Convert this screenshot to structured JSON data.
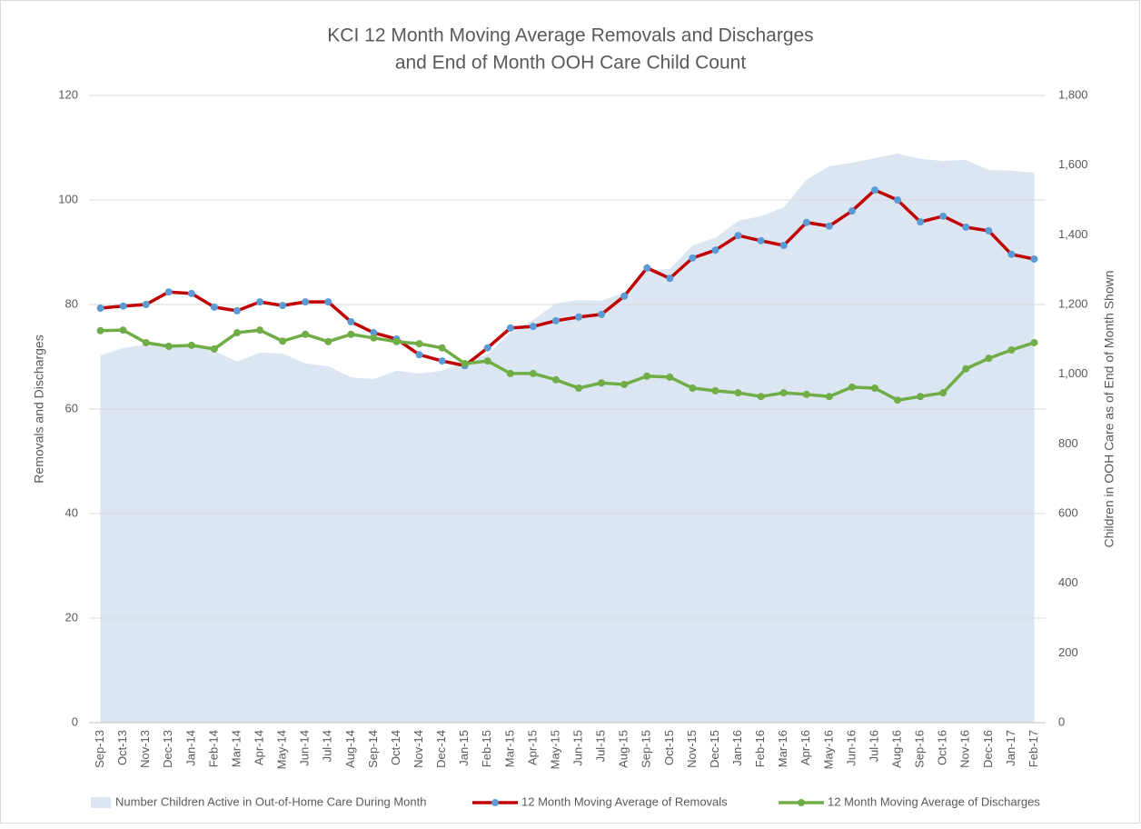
{
  "chart_data": {
    "type": "line",
    "title": [
      "KCI 12 Month Moving Average Removals and Discharges",
      "and End of Month OOH Care Child Count"
    ],
    "y_label": "Removals and Discharges",
    "y2_label": "Children in OOH Care as of End of Month Shown",
    "categories": [
      "Sep-13",
      "Oct-13",
      "Nov-13",
      "Dec-13",
      "Jan-14",
      "Feb-14",
      "Mar-14",
      "Apr-14",
      "May-14",
      "Jun-14",
      "Jul-14",
      "Aug-14",
      "Sep-14",
      "Oct-14",
      "Nov-14",
      "Dec-14",
      "Jan-15",
      "Feb-15",
      "Mar-15",
      "Apr-15",
      "May-15",
      "Jun-15",
      "Jul-15",
      "Aug-15",
      "Sep-15",
      "Oct-15",
      "Nov-15",
      "Dec-15",
      "Jan-16",
      "Feb-16",
      "Mar-16",
      "Apr-16",
      "May-16",
      "Jun-16",
      "Jul-16",
      "Aug-16",
      "Sep-16",
      "Oct-16",
      "Nov-16",
      "Dec-16",
      "Jan-17",
      "Feb-17"
    ],
    "series": [
      {
        "name": "Number Children Active in Out-of-Home Care During Month",
        "type": "area",
        "axis": "y2",
        "color": "#dce6f2",
        "values": [
          1054,
          1075,
          1085,
          1088,
          1085,
          1067,
          1036,
          1062,
          1059,
          1031,
          1023,
          991,
          986,
          1010,
          1002,
          1010,
          1036,
          1057,
          1119,
          1156,
          1203,
          1213,
          1211,
          1234,
          1297,
          1302,
          1370,
          1391,
          1440,
          1453,
          1479,
          1558,
          1597,
          1607,
          1620,
          1633,
          1618,
          1612,
          1615,
          1586,
          1584,
          1578
        ]
      },
      {
        "name": "12 Month Moving Average of Removals",
        "type": "line",
        "color": "#c00000",
        "marker_color": "#5b9bd5",
        "values": [
          79.3,
          79.7,
          80.0,
          82.4,
          82.1,
          79.5,
          78.8,
          80.5,
          79.8,
          80.5,
          80.5,
          76.7,
          74.6,
          73.4,
          70.4,
          69.2,
          68.3,
          71.7,
          75.5,
          75.8,
          76.9,
          77.6,
          78.1,
          81.6,
          87.0,
          85.0,
          88.9,
          90.4,
          93.2,
          92.2,
          91.3,
          95.7,
          95.0,
          97.9,
          101.9,
          100.0,
          95.8,
          96.9,
          94.8,
          94.1,
          89.6,
          88.7
        ]
      },
      {
        "name": "12 Month Moving Average of Discharges",
        "type": "line",
        "color": "#70ad47",
        "marker_color": "#70ad47",
        "values": [
          75.0,
          75.1,
          72.7,
          72.0,
          72.2,
          71.5,
          74.6,
          75.1,
          73.0,
          74.3,
          72.9,
          74.3,
          73.6,
          72.9,
          72.5,
          71.7,
          68.7,
          69.2,
          66.8,
          66.8,
          65.6,
          64.0,
          65.0,
          64.7,
          66.3,
          66.1,
          64.0,
          63.5,
          63.1,
          62.4,
          63.1,
          62.8,
          62.4,
          64.2,
          64.0,
          61.7,
          62.4,
          63.1,
          67.7,
          69.7,
          71.3,
          72.7
        ]
      }
    ],
    "ylim": [
      0,
      120
    ],
    "yticks": [
      0,
      20,
      40,
      60,
      80,
      100,
      120
    ],
    "y2lim": [
      0,
      1800
    ],
    "y2ticks": [
      0,
      200,
      400,
      600,
      800,
      {
        "value": 1000,
        "label": "1,000"
      },
      {
        "value": 1200,
        "label": "1,200"
      },
      {
        "value": 1400,
        "label": "1,400"
      },
      {
        "value": 1600,
        "label": "1,600"
      },
      {
        "value": 1800,
        "label": "1,800"
      }
    ],
    "grid": true,
    "legend": "bottom"
  }
}
